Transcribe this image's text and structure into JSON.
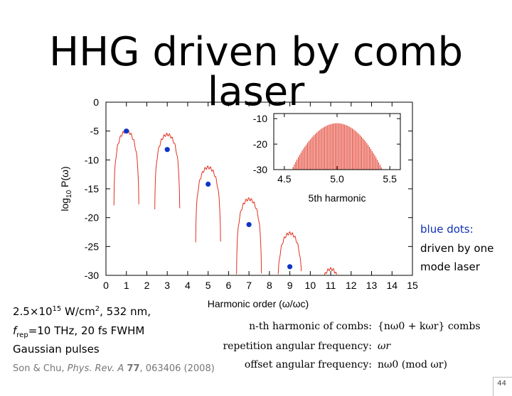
{
  "slide": {
    "title": "HHG driven by comb laser",
    "page_number": "44"
  },
  "params": {
    "line1": "2.5×10",
    "line1_exp": "15",
    "line1_rest": " W/cm",
    "line1_sq": "2",
    "line1_tail": ", 532 nm,",
    "line2_f": "f",
    "line2_sub": "rep",
    "line2_rest": "=10 THz, 20 fs FWHM",
    "line3": "Gaussian pulses"
  },
  "legend_note": {
    "line1": "blue dots:",
    "line2": "driven by one",
    "line3": "mode laser"
  },
  "formulas": {
    "comb_label": "n-th harmonic of combs:",
    "comb_expr": "{nω0 + kωr} combs",
    "rep_label": "repetition angular frequency:",
    "rep_expr": "ωr",
    "offset_label": "offset angular frequency:",
    "offset_expr": "nω0   (mod ωr)"
  },
  "citation": {
    "authors": "Son & Chu, ",
    "journal": "Phys. Rev. A ",
    "volume": "77",
    "rest": ", 063406 (2008)"
  },
  "colors": {
    "spectrum": "#e0301e",
    "dots": "#1034c8",
    "note": "#1030b8"
  },
  "chart_data": [
    {
      "type": "line",
      "xlabel": "Harmonic order (ω/ωc)",
      "ylabel": "log10 P(ω)",
      "xlim": [
        0,
        15
      ],
      "ylim": [
        -30,
        0
      ],
      "xticks": [
        0,
        1,
        2,
        3,
        4,
        5,
        6,
        7,
        8,
        9,
        10,
        11,
        12,
        13,
        14,
        15
      ],
      "yticks": [
        0,
        -5,
        -10,
        -15,
        -20,
        -25,
        -30
      ],
      "series": [
        {
          "peaks": [
            {
              "x": 1,
              "y": -5.0
            },
            {
              "x": 3,
              "y": -5.6
            },
            {
              "x": 5,
              "y": -11.3
            },
            {
              "x": 7,
              "y": -16.8
            },
            {
              "x": 9,
              "y": -22.7
            },
            {
              "x": 11,
              "y": -28.9
            }
          ]
        },
        {
          "name": "driven by one mode laser",
          "x": [
            1,
            3,
            5,
            7,
            9
          ],
          "y": [
            -5.0,
            -8.2,
            -14.2,
            -21.2,
            -28.5
          ]
        }
      ],
      "grid": false
    },
    {
      "type": "bar",
      "xlabel": "5th harmonic",
      "xlim": [
        4.4,
        5.6
      ],
      "ylim": [
        -30,
        -8
      ],
      "xticks": [
        4.5,
        5.0,
        5.5
      ],
      "yticks": [
        -10,
        -20,
        -30
      ],
      "envelope": {
        "center": 5.0,
        "peak": -11.8,
        "at_edges": -30,
        "edge_low": 4.57,
        "edge_high": 5.43
      },
      "comb_spacing": 0.0125
    }
  ]
}
